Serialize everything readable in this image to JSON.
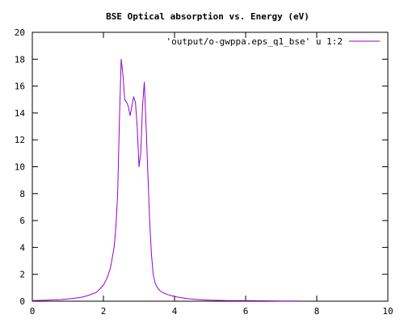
{
  "chart_data": {
    "type": "line",
    "title": "BSE Optical absorption vs. Energy (eV)",
    "xlabel": "",
    "ylabel": "",
    "xlim": [
      0,
      10
    ],
    "ylim": [
      0,
      20
    ],
    "x_ticks": [
      0,
      2,
      4,
      6,
      8,
      10
    ],
    "y_ticks": [
      0,
      2,
      4,
      6,
      8,
      10,
      12,
      14,
      16,
      18,
      20
    ],
    "grid": false,
    "legend_position": "top-right",
    "series": [
      {
        "name": "'output/o-gwppa.eps_q1_bse' u 1:2",
        "color": "#9400d3",
        "x": [
          0.0,
          0.2,
          0.4,
          0.6,
          0.8,
          1.0,
          1.2,
          1.4,
          1.6,
          1.8,
          1.9,
          2.0,
          2.1,
          2.2,
          2.3,
          2.35,
          2.4,
          2.45,
          2.5,
          2.55,
          2.6,
          2.65,
          2.7,
          2.75,
          2.8,
          2.85,
          2.9,
          2.95,
          3.0,
          3.05,
          3.1,
          3.15,
          3.2,
          3.25,
          3.3,
          3.35,
          3.4,
          3.45,
          3.5,
          3.55,
          3.6,
          3.7,
          3.8,
          3.9,
          4.0,
          4.2,
          4.4,
          4.6,
          4.8,
          5.0,
          5.5,
          6.0,
          6.5,
          7.0,
          7.5
        ],
        "y": [
          0.05,
          0.06,
          0.08,
          0.1,
          0.12,
          0.16,
          0.22,
          0.3,
          0.45,
          0.65,
          0.9,
          1.2,
          1.7,
          2.5,
          4.0,
          5.5,
          8.0,
          13.5,
          18.0,
          16.8,
          15.0,
          14.8,
          14.5,
          13.8,
          14.5,
          15.2,
          14.8,
          13.0,
          10.0,
          11.0,
          14.5,
          16.3,
          13.0,
          9.5,
          6.0,
          3.5,
          2.0,
          1.4,
          1.1,
          0.9,
          0.75,
          0.6,
          0.5,
          0.42,
          0.35,
          0.25,
          0.18,
          0.13,
          0.1,
          0.08,
          0.05,
          0.04,
          0.03,
          0.02,
          0.02
        ]
      }
    ]
  }
}
